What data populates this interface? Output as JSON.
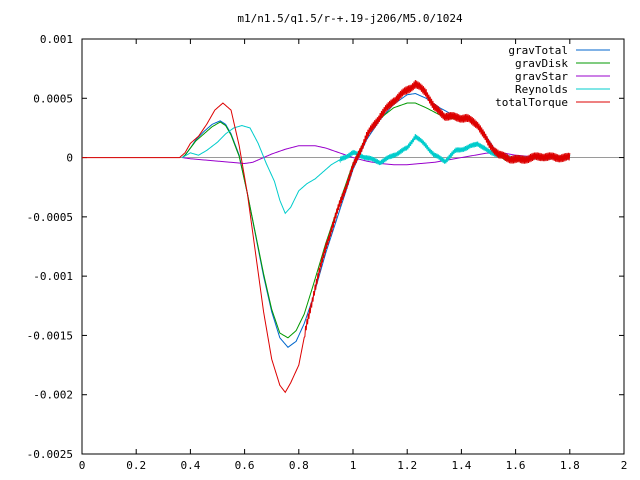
{
  "chart_data": {
    "type": "line",
    "title": "m1/n1.5/q1.5/r-+.19-j206/M5.0/1024",
    "xlabel": "",
    "ylabel": "",
    "xlim": [
      0,
      2
    ],
    "ylim": [
      -0.0025,
      0.001
    ],
    "x_ticks": [
      0,
      0.2,
      0.4,
      0.6,
      0.8,
      1,
      1.2,
      1.4,
      1.6,
      1.8,
      2
    ],
    "x_tick_labels": [
      "0",
      "0.2",
      "0.4",
      "0.6",
      "0.8",
      "1",
      "1.2",
      "1.4",
      "1.6",
      "1.8",
      "2"
    ],
    "y_ticks": [
      0.001,
      0.0005,
      0,
      -0.0005,
      -0.001,
      -0.0015,
      -0.002,
      -0.0025
    ],
    "y_tick_labels": [
      "0.001",
      "0.0005",
      "0",
      "-0.0005",
      "-0.001",
      "-0.0015",
      "-0.002",
      "-0.0025"
    ],
    "grid": false,
    "legend_position": "top-right",
    "series": [
      {
        "name": "gravTotal",
        "color": "#0066cc",
        "noise": 0,
        "points": [
          [
            0.37,
            0
          ],
          [
            0.38,
            2e-05
          ],
          [
            0.4,
            8e-05
          ],
          [
            0.42,
            0.00015
          ],
          [
            0.45,
            0.00022
          ],
          [
            0.48,
            0.00028
          ],
          [
            0.51,
            0.00031
          ],
          [
            0.53,
            0.00028
          ],
          [
            0.55,
            0.0002
          ],
          [
            0.58,
            2e-05
          ],
          [
            0.61,
            -0.0003
          ],
          [
            0.64,
            -0.00065
          ],
          [
            0.67,
            -0.001
          ],
          [
            0.7,
            -0.0013
          ],
          [
            0.73,
            -0.00152
          ],
          [
            0.76,
            -0.0016
          ],
          [
            0.79,
            -0.00155
          ],
          [
            0.82,
            -0.0014
          ],
          [
            0.85,
            -0.0012
          ],
          [
            0.9,
            -0.0008
          ],
          [
            0.95,
            -0.00045
          ],
          [
            1.0,
            -0.0001
          ],
          [
            1.05,
            0.00015
          ],
          [
            1.1,
            0.00032
          ],
          [
            1.15,
            0.00045
          ],
          [
            1.2,
            0.00053
          ],
          [
            1.23,
            0.00054
          ],
          [
            1.27,
            0.0005
          ],
          [
            1.32,
            0.00042
          ],
          [
            1.36,
            0.00037
          ],
          [
            1.4,
            0.00034
          ],
          [
            1.44,
            0.00032
          ],
          [
            1.48,
            0.00022
          ],
          [
            1.52,
            8e-05
          ],
          [
            1.56,
            -2e-05
          ],
          [
            1.6,
            -3e-05
          ],
          [
            1.64,
            -2e-05
          ],
          [
            1.68,
            0
          ],
          [
            1.72,
            1e-05
          ],
          [
            1.76,
            1e-05
          ],
          [
            1.8,
            0
          ]
        ]
      },
      {
        "name": "gravDisk",
        "color": "#009900",
        "noise": 0,
        "points": [
          [
            0.37,
            0
          ],
          [
            0.38,
            2e-05
          ],
          [
            0.4,
            8e-05
          ],
          [
            0.42,
            0.00014
          ],
          [
            0.45,
            0.0002
          ],
          [
            0.48,
            0.00026
          ],
          [
            0.51,
            0.0003
          ],
          [
            0.53,
            0.00027
          ],
          [
            0.55,
            0.00019
          ],
          [
            0.58,
            1e-05
          ],
          [
            0.61,
            -0.0003
          ],
          [
            0.64,
            -0.00064
          ],
          [
            0.67,
            -0.00098
          ],
          [
            0.7,
            -0.00128
          ],
          [
            0.73,
            -0.00148
          ],
          [
            0.76,
            -0.00152
          ],
          [
            0.79,
            -0.00146
          ],
          [
            0.82,
            -0.00132
          ],
          [
            0.85,
            -0.0011
          ],
          [
            0.9,
            -0.00072
          ],
          [
            0.95,
            -0.00038
          ],
          [
            1.0,
            -5e-05
          ],
          [
            1.05,
            0.00018
          ],
          [
            1.1,
            0.00033
          ],
          [
            1.15,
            0.00042
          ],
          [
            1.2,
            0.00046
          ],
          [
            1.23,
            0.00046
          ],
          [
            1.27,
            0.00042
          ],
          [
            1.32,
            0.00036
          ],
          [
            1.36,
            0.00033
          ],
          [
            1.4,
            0.00032
          ],
          [
            1.44,
            0.00032
          ],
          [
            1.48,
            0.0002
          ],
          [
            1.52,
            6e-05
          ],
          [
            1.56,
            -2e-05
          ],
          [
            1.6,
            -3e-05
          ],
          [
            1.64,
            -2e-05
          ],
          [
            1.68,
            0
          ],
          [
            1.72,
            1e-05
          ],
          [
            1.76,
            1e-05
          ],
          [
            1.8,
            0
          ]
        ]
      },
      {
        "name": "gravStar",
        "color": "#9900cc",
        "noise": 0,
        "points": [
          [
            0.37,
            0
          ],
          [
            0.4,
            -1e-05
          ],
          [
            0.45,
            -2e-05
          ],
          [
            0.5,
            -3e-05
          ],
          [
            0.55,
            -4e-05
          ],
          [
            0.6,
            -5e-05
          ],
          [
            0.63,
            -4e-05
          ],
          [
            0.66,
            -1e-05
          ],
          [
            0.7,
            3e-05
          ],
          [
            0.75,
            7e-05
          ],
          [
            0.8,
            0.0001
          ],
          [
            0.86,
            0.0001
          ],
          [
            0.9,
            8e-05
          ],
          [
            0.95,
            4e-05
          ],
          [
            1.0,
            0
          ],
          [
            1.05,
            -3e-05
          ],
          [
            1.1,
            -5e-05
          ],
          [
            1.15,
            -6e-05
          ],
          [
            1.2,
            -6e-05
          ],
          [
            1.25,
            -5e-05
          ],
          [
            1.3,
            -4e-05
          ],
          [
            1.35,
            -2e-05
          ],
          [
            1.4,
            0
          ],
          [
            1.45,
            2e-05
          ],
          [
            1.5,
            4e-05
          ],
          [
            1.55,
            4e-05
          ],
          [
            1.6,
            2e-05
          ],
          [
            1.65,
            1e-05
          ],
          [
            1.7,
            0
          ],
          [
            1.75,
            0
          ],
          [
            1.8,
            0
          ]
        ]
      },
      {
        "name": "Reynolds",
        "color": "#00cccc",
        "noise": 2.5e-05,
        "noise_start": 0.95,
        "points": [
          [
            0.37,
            0
          ],
          [
            0.4,
            4e-05
          ],
          [
            0.43,
            2e-05
          ],
          [
            0.46,
            6e-05
          ],
          [
            0.5,
            0.00013
          ],
          [
            0.53,
            0.0002
          ],
          [
            0.56,
            0.00025
          ],
          [
            0.59,
            0.00027
          ],
          [
            0.62,
            0.00025
          ],
          [
            0.65,
            0.00012
          ],
          [
            0.68,
            -5e-05
          ],
          [
            0.71,
            -0.0002
          ],
          [
            0.73,
            -0.00036
          ],
          [
            0.75,
            -0.00047
          ],
          [
            0.77,
            -0.00042
          ],
          [
            0.8,
            -0.00028
          ],
          [
            0.83,
            -0.00022
          ],
          [
            0.86,
            -0.00018
          ],
          [
            0.89,
            -0.00012
          ],
          [
            0.92,
            -6e-05
          ],
          [
            0.95,
            -2e-05
          ],
          [
            1.0,
            4e-05
          ],
          [
            1.05,
            0
          ],
          [
            1.1,
            -4e-05
          ],
          [
            1.15,
            2e-05
          ],
          [
            1.2,
            8e-05
          ],
          [
            1.23,
            0.00018
          ],
          [
            1.27,
            0.0001
          ],
          [
            1.3,
            2e-05
          ],
          [
            1.34,
            -3e-05
          ],
          [
            1.38,
            6e-05
          ],
          [
            1.42,
            8e-05
          ],
          [
            1.46,
            0.00012
          ],
          [
            1.5,
            5e-05
          ],
          [
            1.54,
            2e-05
          ],
          [
            1.58,
            0
          ],
          [
            1.62,
            -1e-05
          ],
          [
            1.66,
            0
          ],
          [
            1.7,
            0
          ],
          [
            1.75,
            0
          ],
          [
            1.8,
            0
          ]
        ]
      },
      {
        "name": "totalTorque",
        "color": "#dd0000",
        "noise": 4e-05,
        "noise_start": 0.82,
        "points": [
          [
            0,
            0
          ],
          [
            0.36,
            0
          ],
          [
            0.38,
            4e-05
          ],
          [
            0.4,
            0.00012
          ],
          [
            0.43,
            0.00018
          ],
          [
            0.46,
            0.00028
          ],
          [
            0.49,
            0.0004
          ],
          [
            0.52,
            0.00046
          ],
          [
            0.55,
            0.0004
          ],
          [
            0.58,
            0.0001
          ],
          [
            0.61,
            -0.0003
          ],
          [
            0.64,
            -0.0008
          ],
          [
            0.67,
            -0.0013
          ],
          [
            0.7,
            -0.0017
          ],
          [
            0.73,
            -0.00192
          ],
          [
            0.75,
            -0.00198
          ],
          [
            0.77,
            -0.0019
          ],
          [
            0.8,
            -0.00175
          ],
          [
            0.83,
            -0.0014
          ],
          [
            0.86,
            -0.0011
          ],
          [
            0.9,
            -0.00075
          ],
          [
            0.95,
            -0.0004
          ],
          [
            1.0,
            -8e-05
          ],
          [
            1.05,
            0.00018
          ],
          [
            1.1,
            0.00035
          ],
          [
            1.15,
            0.00048
          ],
          [
            1.2,
            0.00057
          ],
          [
            1.23,
            0.00062
          ],
          [
            1.27,
            0.00055
          ],
          [
            1.3,
            0.00042
          ],
          [
            1.34,
            0.00035
          ],
          [
            1.38,
            0.00034
          ],
          [
            1.42,
            0.00033
          ],
          [
            1.46,
            0.00028
          ],
          [
            1.5,
            0.00012
          ],
          [
            1.54,
            2e-05
          ],
          [
            1.58,
            -1e-05
          ],
          [
            1.62,
            -2e-05
          ],
          [
            1.66,
            0
          ],
          [
            1.7,
            1e-05
          ],
          [
            1.75,
            0
          ],
          [
            1.8,
            0
          ]
        ]
      }
    ]
  }
}
